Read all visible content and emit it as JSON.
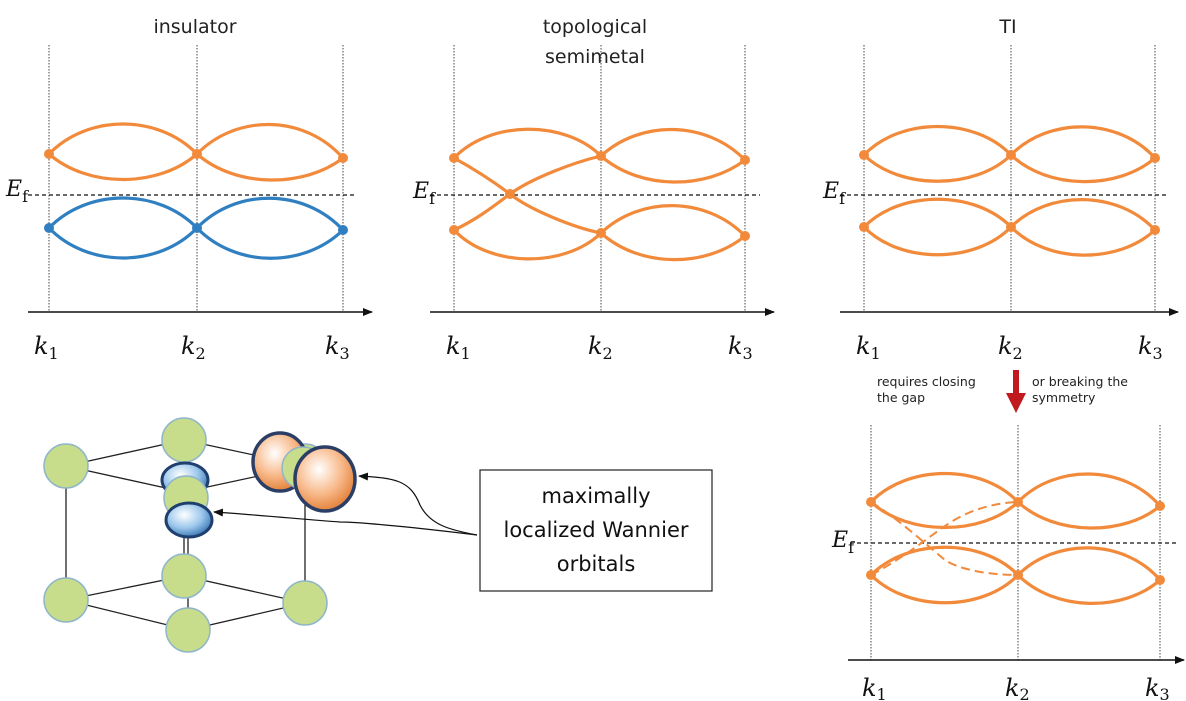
{
  "panels": {
    "insulator": {
      "title": "insulator"
    },
    "semimetal": {
      "title_line1": "topological",
      "title_line2": "semimetal"
    },
    "ti": {
      "title": "TI"
    },
    "broken": {
      "title": ""
    }
  },
  "labels": {
    "k1": "k",
    "k1_sub": "1",
    "k2": "k",
    "k2_sub": "2",
    "k3": "k",
    "k3_sub": "3",
    "ef": "E",
    "ef_sub": "f"
  },
  "transition": {
    "left_line1": "requires closing",
    "left_line2": "the gap",
    "right_line1": "or breaking the",
    "right_line2": "symmetry"
  },
  "wannier_box": {
    "line1": "maximally",
    "line2": "localized Wannier",
    "line3": "orbitals"
  },
  "colors": {
    "band_orange": "#f28a3c",
    "band_blue": "#2f7fc1",
    "arrow_red": "#c0191e",
    "atom_green": "#c7dd8c",
    "wannier_blue": "#5a9fd6",
    "wannier_orange": "#f7a86a"
  }
}
